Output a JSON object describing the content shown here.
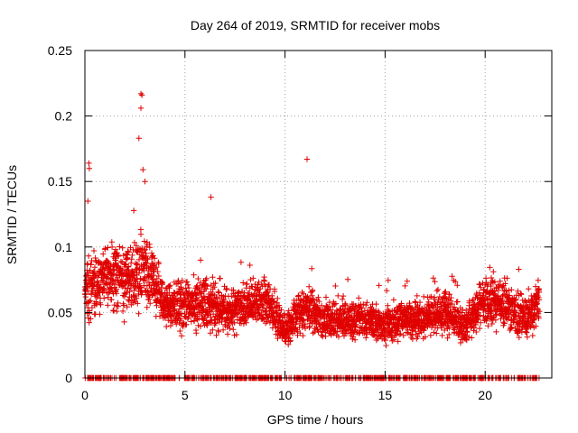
{
  "chart_data": {
    "type": "scatter",
    "title": "Day 264 of 2019, SRMTID for receiver mobs",
    "xlabel": "GPS time / hours",
    "ylabel": "SRMTID / TECUs",
    "xlim": [
      0,
      23.33
    ],
    "ylim": [
      0,
      0.25
    ],
    "xticks": [
      0,
      5,
      10,
      15,
      20
    ],
    "xtick_labels": [
      "0",
      "5",
      "10",
      "15",
      "20"
    ],
    "yticks": [
      0,
      0.05,
      0.1,
      0.15,
      0.2,
      0.25
    ],
    "ytick_labels": [
      "0",
      "0.05",
      "0.1",
      "0.15",
      "0.2",
      "0.25"
    ],
    "grid": true,
    "marker": "+",
    "series": [
      {
        "name": "SRMTID",
        "color": "#e00000",
        "x_range": [
          0,
          22.7
        ],
        "sampling_interval_hours": 0.0167,
        "envelope_hours": [
          0,
          1,
          2,
          2.5,
          3,
          3.5,
          4,
          5,
          6,
          7,
          8,
          9,
          10,
          11,
          12,
          13,
          14,
          15,
          16,
          17,
          18,
          19,
          20,
          21,
          22,
          22.7
        ],
        "envelope_median": [
          0.065,
          0.075,
          0.075,
          0.08,
          0.09,
          0.07,
          0.055,
          0.055,
          0.06,
          0.05,
          0.055,
          0.06,
          0.035,
          0.055,
          0.045,
          0.045,
          0.045,
          0.04,
          0.045,
          0.045,
          0.05,
          0.04,
          0.06,
          0.055,
          0.045,
          0.06
        ],
        "notable_points": [
          {
            "x": 2.8,
            "y": 0.217
          },
          {
            "x": 2.85,
            "y": 0.216
          },
          {
            "x": 2.8,
            "y": 0.206
          },
          {
            "x": 2.7,
            "y": 0.183
          },
          {
            "x": 0.2,
            "y": 0.164
          },
          {
            "x": 0.22,
            "y": 0.16
          },
          {
            "x": 11.1,
            "y": 0.167
          },
          {
            "x": 2.9,
            "y": 0.159
          },
          {
            "x": 3.0,
            "y": 0.15
          },
          {
            "x": 6.3,
            "y": 0.138
          },
          {
            "x": 0.15,
            "y": 0.135
          }
        ],
        "zero_baseline": true
      }
    ]
  }
}
